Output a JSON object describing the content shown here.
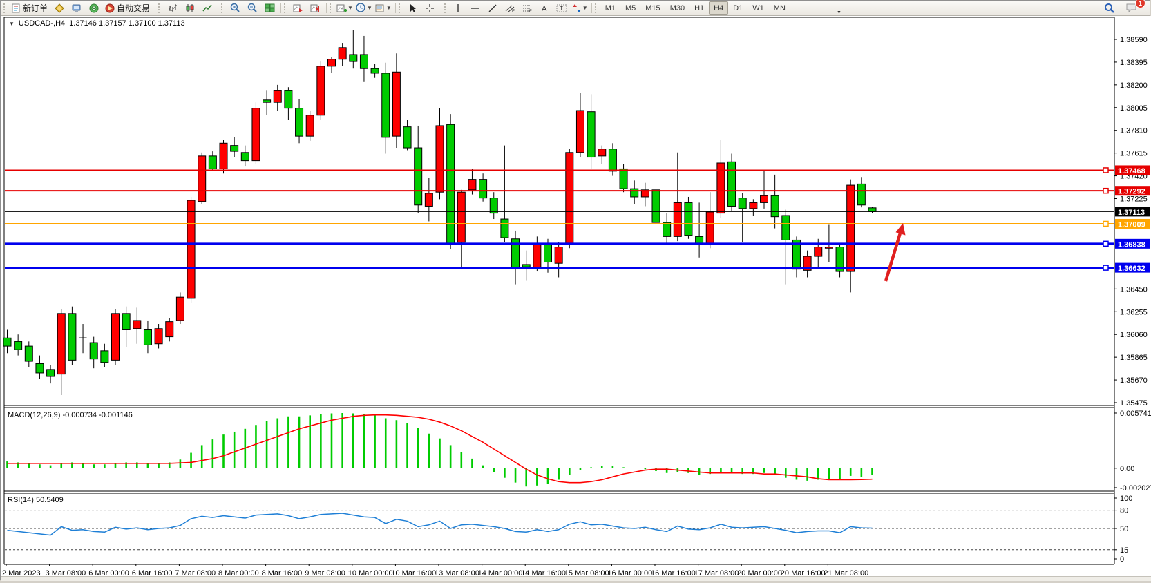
{
  "toolbar": {
    "new_order": "新订单",
    "autotrading": "自动交易",
    "icons": [
      "new-order-doc-icon",
      "market-watch-icon",
      "terminal-icon",
      "signals-icon",
      "autotrading-icon",
      "bar-chart-icon",
      "candlestick-chart-icon",
      "line-chart-icon",
      "zoom-in-icon",
      "zoom-out-icon",
      "tile-windows-icon",
      "auto-scroll-icon",
      "chart-shift-icon",
      "indicators-icon",
      "periods-icon",
      "templates-icon",
      "cursor-icon",
      "crosshair-icon",
      "vertical-line-icon",
      "horizontal-line-icon",
      "trendline-icon",
      "equidistant-channel-icon",
      "fibonacci-icon",
      "text-icon",
      "text-label-icon",
      "arrows-icon",
      "search-icon",
      "notification-icon"
    ],
    "timeframes": [
      "M1",
      "M5",
      "M15",
      "M30",
      "H1",
      "H4",
      "D1",
      "W1",
      "MN"
    ],
    "active_timeframe": "H4",
    "notification_count": "1"
  },
  "chart_window": {
    "title_symbol": "USDCAD-,H4",
    "title_ohlc": "1.37146 1.37157 1.37100 1.37113",
    "y_axis_ticks": [
      "1.38590",
      "1.38395",
      "1.38200",
      "1.38005",
      "1.37810",
      "1.37615",
      "1.37420",
      "1.37225",
      "1.36450",
      "1.36255",
      "1.36060",
      "1.35865",
      "1.35670",
      "1.35475"
    ],
    "current_price_badge": "1.37113",
    "levels": [
      {
        "label": "1.37468",
        "value": 1.37468,
        "color": "#e60000",
        "width": 2,
        "handle": true
      },
      {
        "label": "1.37292",
        "value": 1.37292,
        "color": "#e60000",
        "width": 2,
        "handle": true
      },
      {
        "label": "1.37113",
        "value": 1.37113,
        "color": "#000000",
        "width": 1,
        "handle": false
      },
      {
        "label": "1.37009",
        "value": 1.37009,
        "color": "#ffa500",
        "width": 2,
        "handle": true
      },
      {
        "label": "1.36838",
        "value": 1.36838,
        "color": "#0000ee",
        "width": 3,
        "handle": true
      },
      {
        "label": "1.36632",
        "value": 1.36632,
        "color": "#0000ee",
        "width": 3,
        "handle": true
      }
    ],
    "x_axis_labels": [
      "2 Mar 2023",
      "3 Mar 08:00",
      "6 Mar 00:00",
      "6 Mar 16:00",
      "7 Mar 08:00",
      "8 Mar 00:00",
      "8 Mar 16:00",
      "9 Mar 08:00",
      "10 Mar 00:00",
      "10 Mar 16:00",
      "13 Mar 08:00",
      "14 Mar 00:00",
      "14 Mar 16:00",
      "15 Mar 08:00",
      "16 Mar 00:00",
      "16 Mar 16:00",
      "17 Mar 08:00",
      "20 Mar 00:00",
      "20 Mar 16:00",
      "21 Mar 08:00"
    ]
  },
  "annotations": {
    "arrow": {
      "name": "up-trend-arrow",
      "color": "#e01f1f"
    }
  },
  "chart_data": [
    {
      "type": "candlestick",
      "title": "USDCAD H4",
      "up_color": "#ff0000",
      "down_color": "#00cc00",
      "ylim": [
        1.354,
        1.3872
      ],
      "candles": [
        [
          1.3603,
          1.361,
          1.359,
          1.3596
        ],
        [
          1.36,
          1.3606,
          1.3588,
          1.3593
        ],
        [
          1.3596,
          1.36,
          1.3578,
          1.3583
        ],
        [
          1.3581,
          1.3588,
          1.3568,
          1.3573
        ],
        [
          1.3576,
          1.358,
          1.3564,
          1.357
        ],
        [
          1.3572,
          1.3628,
          1.3554,
          1.3624
        ],
        [
          1.3624,
          1.363,
          1.358,
          1.3584
        ],
        [
          1.3603,
          1.3615,
          1.359,
          1.3603
        ],
        [
          1.3599,
          1.3604,
          1.3577,
          1.3585
        ],
        [
          1.3592,
          1.3598,
          1.3578,
          1.3582
        ],
        [
          1.3584,
          1.3628,
          1.358,
          1.3624
        ],
        [
          1.3624,
          1.363,
          1.3595,
          1.361
        ],
        [
          1.3611,
          1.3629,
          1.3598,
          1.3618
        ],
        [
          1.361,
          1.3618,
          1.359,
          1.3597
        ],
        [
          1.3598,
          1.3615,
          1.3594,
          1.3611
        ],
        [
          1.3604,
          1.362,
          1.36,
          1.3617
        ],
        [
          1.3618,
          1.3642,
          1.3615,
          1.3638
        ],
        [
          1.3637,
          1.3724,
          1.3633,
          1.3721
        ],
        [
          1.372,
          1.3762,
          1.3718,
          1.3759
        ],
        [
          1.3759,
          1.3763,
          1.3746,
          1.3748
        ],
        [
          1.3748,
          1.3773,
          1.3744,
          1.377
        ],
        [
          1.3768,
          1.3775,
          1.3758,
          1.3763
        ],
        [
          1.3762,
          1.3768,
          1.375,
          1.3755
        ],
        [
          1.3755,
          1.3805,
          1.3752,
          1.38
        ],
        [
          1.3807,
          1.3815,
          1.3794,
          1.3805
        ],
        [
          1.3805,
          1.382,
          1.3798,
          1.3815
        ],
        [
          1.3815,
          1.3818,
          1.379,
          1.38
        ],
        [
          1.38,
          1.3808,
          1.377,
          1.3776
        ],
        [
          1.3776,
          1.3798,
          1.3772,
          1.3794
        ],
        [
          1.3794,
          1.384,
          1.379,
          1.3836
        ],
        [
          1.3836,
          1.3844,
          1.383,
          1.3842
        ],
        [
          1.3842,
          1.3856,
          1.3836,
          1.3852
        ],
        [
          1.3846,
          1.3867,
          1.3834,
          1.384
        ],
        [
          1.3846,
          1.3862,
          1.3823,
          1.3834
        ],
        [
          1.3834,
          1.3838,
          1.3826,
          1.383
        ],
        [
          1.383,
          1.3839,
          1.3761,
          1.3775
        ],
        [
          1.3776,
          1.3847,
          1.3766,
          1.3831
        ],
        [
          1.3784,
          1.379,
          1.3764,
          1.3766
        ],
        [
          1.3766,
          1.3785,
          1.371,
          1.3717
        ],
        [
          1.3716,
          1.374,
          1.3703,
          1.3727
        ],
        [
          1.3728,
          1.38,
          1.3722,
          1.3785
        ],
        [
          1.3786,
          1.3795,
          1.3679,
          1.3684
        ],
        [
          1.3685,
          1.373,
          1.3664,
          1.3728
        ],
        [
          1.373,
          1.3748,
          1.3726,
          1.3739
        ],
        [
          1.3739,
          1.3744,
          1.372,
          1.3723
        ],
        [
          1.3723,
          1.3728,
          1.3705,
          1.371
        ],
        [
          1.3705,
          1.3768,
          1.3685,
          1.3689
        ],
        [
          1.3688,
          1.3695,
          1.3649,
          1.3663
        ],
        [
          1.3666,
          1.3678,
          1.3652,
          1.3664
        ],
        [
          1.3663,
          1.369,
          1.366,
          1.3683
        ],
        [
          1.3683,
          1.3688,
          1.3659,
          1.3668
        ],
        [
          1.3667,
          1.3685,
          1.3655,
          1.3681
        ],
        [
          1.3684,
          1.3765,
          1.368,
          1.3762
        ],
        [
          1.3762,
          1.3813,
          1.3758,
          1.3798
        ],
        [
          1.3797,
          1.3812,
          1.3748,
          1.3758
        ],
        [
          1.3759,
          1.3768,
          1.3752,
          1.3765
        ],
        [
          1.3765,
          1.377,
          1.3742,
          1.3746
        ],
        [
          1.3748,
          1.3752,
          1.3728,
          1.3731
        ],
        [
          1.3731,
          1.3738,
          1.3718,
          1.3724
        ],
        [
          1.3724,
          1.3736,
          1.3716,
          1.373
        ],
        [
          1.373,
          1.3733,
          1.3698,
          1.3702
        ],
        [
          1.3702,
          1.371,
          1.3684,
          1.369
        ],
        [
          1.369,
          1.3762,
          1.3686,
          1.3719
        ],
        [
          1.3719,
          1.3724,
          1.3688,
          1.3691
        ],
        [
          1.369,
          1.3719,
          1.3672,
          1.3684
        ],
        [
          1.3684,
          1.3728,
          1.368,
          1.3711
        ],
        [
          1.371,
          1.3773,
          1.3706,
          1.3753
        ],
        [
          1.3754,
          1.3761,
          1.3712,
          1.3716
        ],
        [
          1.3723,
          1.3727,
          1.3685,
          1.3714
        ],
        [
          1.3714,
          1.3722,
          1.3708,
          1.3719
        ],
        [
          1.3719,
          1.3746,
          1.3714,
          1.3725
        ],
        [
          1.3725,
          1.3743,
          1.3697,
          1.3707
        ],
        [
          1.3708,
          1.3713,
          1.3649,
          1.3687
        ],
        [
          1.3687,
          1.369,
          1.3655,
          1.3662
        ],
        [
          1.3661,
          1.3678,
          1.3655,
          1.3673
        ],
        [
          1.3673,
          1.3688,
          1.3662,
          1.3681
        ],
        [
          1.368,
          1.37,
          1.3668,
          1.3681
        ],
        [
          1.3681,
          1.3684,
          1.3655,
          1.366
        ],
        [
          1.366,
          1.3739,
          1.3642,
          1.3734
        ],
        [
          1.3735,
          1.3741,
          1.3715,
          1.3717
        ],
        [
          1.37146,
          1.37157,
          1.371,
          1.37113
        ]
      ]
    },
    {
      "type": "bar",
      "name": "MACD(12,26,9)",
      "label": "MACD(12,26,9) -0.000734 -0.001146",
      "main_value": -0.000734,
      "signal_value": -0.001146,
      "axis_ticks": [
        "0.005741",
        "0.00",
        "-0.002027"
      ],
      "ylim": [
        -0.002027,
        0.005741
      ],
      "bar_color": "#00cc00",
      "signal_color": "#ff0000",
      "values": [
        0.0007,
        0.0006,
        0.0005,
        0.0004,
        0.0003,
        0.0005,
        0.0006,
        0.0005,
        0.0004,
        0.0004,
        0.0005,
        0.0006,
        0.0006,
        0.0005,
        0.0005,
        0.0006,
        0.0009,
        0.0016,
        0.0024,
        0.003,
        0.0035,
        0.0038,
        0.0041,
        0.0045,
        0.0049,
        0.0052,
        0.0054,
        0.0054,
        0.0055,
        0.0056,
        0.0057,
        0.00574,
        0.0057,
        0.0056,
        0.0055,
        0.0052,
        0.005,
        0.0047,
        0.0042,
        0.0036,
        0.0031,
        0.0024,
        0.0017,
        0.001,
        0.0003,
        -0.0004,
        -0.001,
        -0.0015,
        -0.0019,
        -0.0018,
        -0.0016,
        -0.0012,
        -0.0007,
        -0.0002,
        0.0001,
        0.0002,
        0.0002,
        0.0001,
        0.0,
        -0.0001,
        -0.0003,
        -0.0005,
        -0.0004,
        -0.0005,
        -0.0007,
        -0.0006,
        -0.0004,
        -0.0005,
        -0.0006,
        -0.0006,
        -0.0005,
        -0.0007,
        -0.001,
        -0.0012,
        -0.0013,
        -0.0012,
        -0.0011,
        -0.0012,
        -0.0008,
        -0.0009,
        -0.000734
      ],
      "signal": [
        0.0005,
        0.0005,
        0.0005,
        0.0005,
        0.0005,
        0.0005,
        0.0005,
        0.0005,
        0.0005,
        0.0005,
        0.0005,
        0.0005,
        0.0005,
        0.0005,
        0.0005,
        0.0005,
        0.00055,
        0.0006,
        0.0008,
        0.001,
        0.0013,
        0.0017,
        0.0021,
        0.0025,
        0.0029,
        0.0033,
        0.0037,
        0.0041,
        0.0044,
        0.0047,
        0.005,
        0.0052,
        0.0054,
        0.0055,
        0.00555,
        0.00555,
        0.0055,
        0.0054,
        0.0053,
        0.0051,
        0.0048,
        0.0044,
        0.0039,
        0.0033,
        0.0027,
        0.002,
        0.0013,
        0.0006,
        -0.0001,
        -0.0007,
        -0.0011,
        -0.0014,
        -0.0015,
        -0.0015,
        -0.0014,
        -0.0012,
        -0.0009,
        -0.0006,
        -0.0004,
        -0.0002,
        -0.0001,
        -0.0001,
        -0.0002,
        -0.0003,
        -0.0004,
        -0.0005,
        -0.0005,
        -0.0005,
        -0.0005,
        -0.0005,
        -0.0006,
        -0.0006,
        -0.0007,
        -0.0008,
        -0.0009,
        -0.0011,
        -0.0012,
        -0.0012,
        -0.0012,
        -0.00118,
        -0.001146
      ]
    },
    {
      "type": "line",
      "name": "RSI(14)",
      "label": "RSI(14) 50.5409",
      "current_value": 50.5409,
      "axis_ticks": [
        "100",
        "80",
        "50",
        "15",
        "0"
      ],
      "dashed_levels": [
        80,
        50,
        15
      ],
      "ylim": [
        0,
        100
      ],
      "line_color": "#1e7fd6",
      "values": [
        47,
        45,
        43,
        41,
        39,
        53,
        47,
        48,
        45,
        44,
        52,
        49,
        51,
        48,
        50,
        51,
        55,
        66,
        70,
        68,
        71,
        69,
        67,
        72,
        73,
        74,
        71,
        66,
        69,
        73,
        74,
        75,
        72,
        69,
        68,
        58,
        65,
        62,
        53,
        56,
        62,
        50,
        56,
        57,
        55,
        53,
        50,
        45,
        44,
        48,
        45,
        48,
        57,
        61,
        56,
        57,
        54,
        51,
        50,
        52,
        48,
        45,
        54,
        49,
        48,
        51,
        57,
        52,
        51,
        52,
        53,
        50,
        47,
        43,
        45,
        46,
        46,
        43,
        53,
        51,
        50.54
      ]
    }
  ]
}
